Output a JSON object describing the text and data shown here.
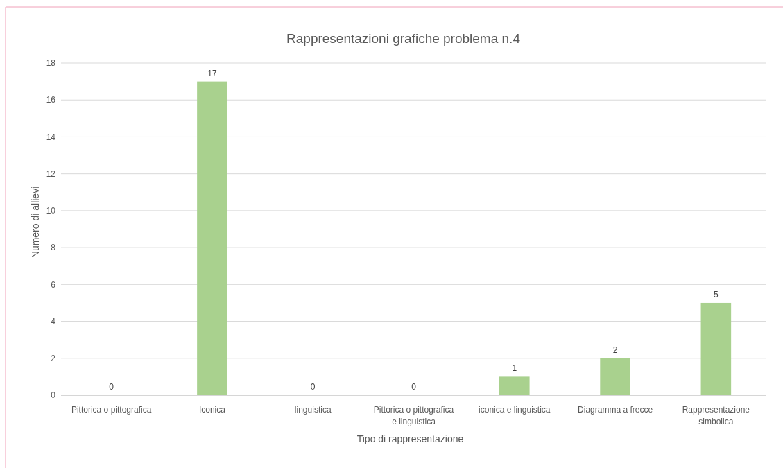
{
  "chart_data": {
    "type": "bar",
    "title": "Rappresentazioni grafiche problema n.4",
    "xlabel": "Tipo di rappresentazione",
    "ylabel": "Numero di allievi",
    "categories": [
      "Pittorica o pittografica",
      "Iconica",
      "linguistica",
      "Pittorica o pittografica e linguistica",
      "iconica e linguistica",
      "Diagramma a frecce",
      "Rappresentazione simbolica"
    ],
    "values": [
      0,
      17,
      0,
      0,
      1,
      2,
      5
    ],
    "color": "#a9d18e",
    "ylim": [
      0,
      18
    ],
    "yticks": [
      0,
      2,
      4,
      6,
      8,
      10,
      12,
      14,
      16,
      18
    ],
    "grid": "y",
    "data_labels": true
  }
}
